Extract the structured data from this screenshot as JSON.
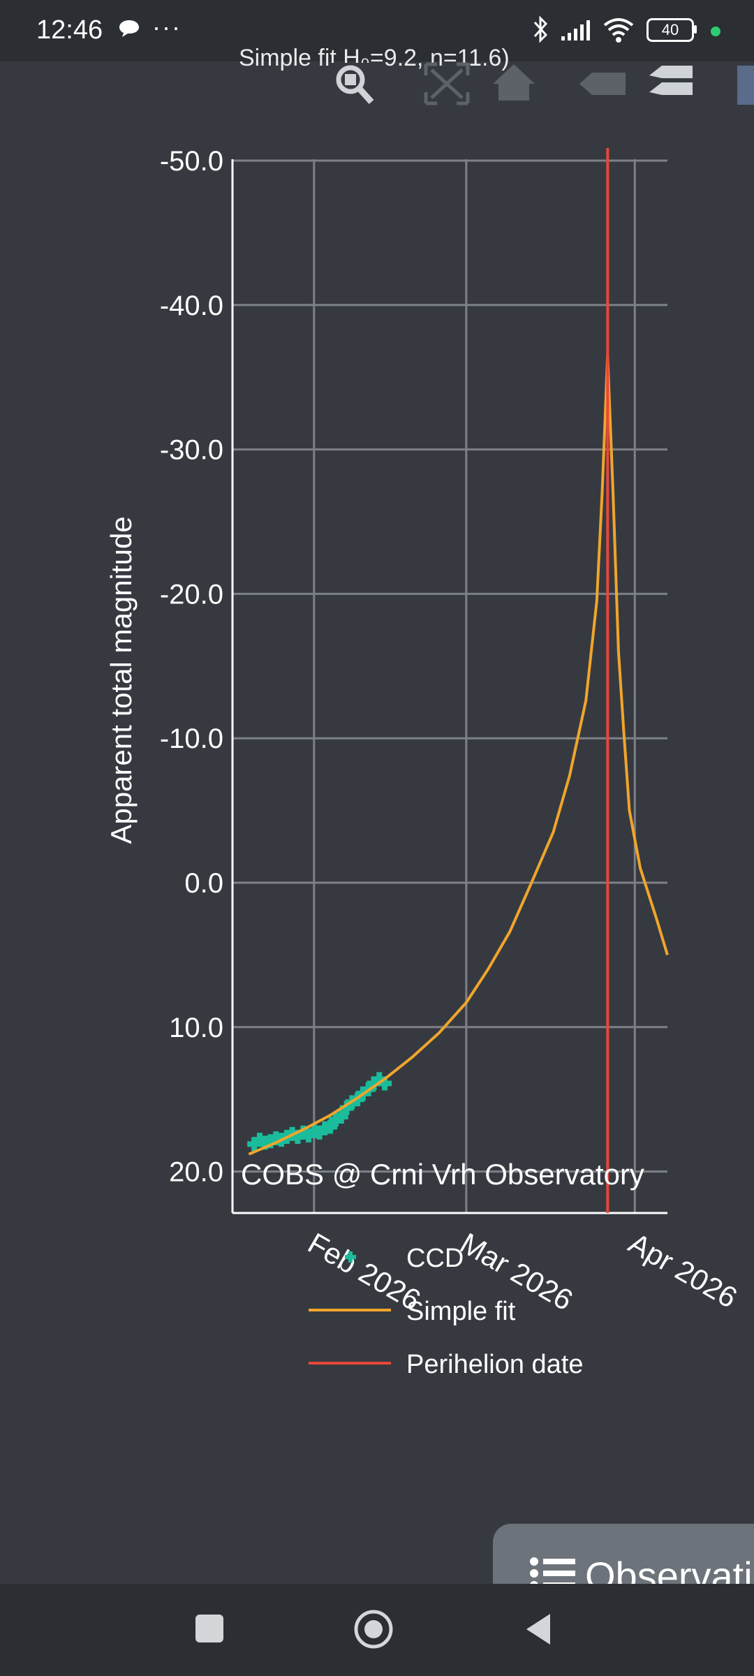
{
  "status_bar": {
    "time": "12:46",
    "chat_icon": "speech-bubble-icon",
    "overflow": "···",
    "battery": "40",
    "icons": [
      "bluetooth-icon",
      "signal-icon",
      "wifi-icon",
      "battery-icon"
    ],
    "dot_color": "#2ecc71"
  },
  "modebar": {
    "title_fragment": "Simple fit H₀=9.2, n=11.6)",
    "buttons": [
      "zoom-icon",
      "autoscale-icon",
      "home-icon",
      "compare-icon",
      "closest-icon"
    ]
  },
  "chart_data": {
    "type": "line",
    "title": "",
    "xlabel": "",
    "ylabel": "Apparent total magnitude",
    "annotation": "COBS @ Crni Vrh Observatory",
    "y_reversed": true,
    "ylim": [
      20.0,
      -50.0
    ],
    "yticks": [
      "-50.0",
      "-40.0",
      "-30.0",
      "-20.0",
      "-10.0",
      "0.0",
      "10.0",
      "20.0"
    ],
    "ytick_values": [
      -50,
      -40,
      -30,
      -20,
      -10,
      0,
      10,
      20
    ],
    "xlim": [
      "2026-01-17",
      "2026-04-07"
    ],
    "xticks": [
      "Feb 2026",
      "Mar 2026",
      "Apr 2026"
    ],
    "xtick_dates": [
      "2026-02-01",
      "2026-03-01",
      "2026-04-01"
    ],
    "grid": true,
    "legend_placement": "bottom",
    "series": [
      {
        "name": "CCD",
        "kind": "markers",
        "color": "#1abc9c",
        "points": [
          [
            "2026-01-21",
            18.1
          ],
          [
            "2026-01-22",
            17.8
          ],
          [
            "2026-01-23",
            18.0
          ],
          [
            "2026-01-24",
            17.9
          ],
          [
            "2026-01-25",
            17.7
          ],
          [
            "2026-01-26",
            17.8
          ],
          [
            "2026-01-27",
            17.6
          ],
          [
            "2026-01-28",
            17.4
          ],
          [
            "2026-01-29",
            17.6
          ],
          [
            "2026-01-30",
            17.3
          ],
          [
            "2026-01-31",
            17.5
          ],
          [
            "2026-02-01",
            17.2
          ],
          [
            "2026-02-02",
            17.3
          ],
          [
            "2026-02-03",
            17.0
          ],
          [
            "2026-02-04",
            16.9
          ],
          [
            "2026-02-05",
            16.4
          ],
          [
            "2026-02-06",
            16.2
          ],
          [
            "2026-02-07",
            15.6
          ],
          [
            "2026-02-08",
            15.2
          ],
          [
            "2026-02-09",
            15.0
          ],
          [
            "2026-02-10",
            14.6
          ],
          [
            "2026-02-11",
            14.3
          ],
          [
            "2026-02-12",
            13.9
          ],
          [
            "2026-02-13",
            13.6
          ],
          [
            "2026-02-14",
            13.9
          ]
        ]
      },
      {
        "name": "Simple fit",
        "kind": "line",
        "color": "#f0a52c",
        "points": [
          [
            "2026-01-20",
            18.8
          ],
          [
            "2026-01-25",
            18.0
          ],
          [
            "2026-01-30",
            17.1
          ],
          [
            "2026-02-04",
            16.1
          ],
          [
            "2026-02-09",
            14.9
          ],
          [
            "2026-02-14",
            13.6
          ],
          [
            "2026-02-19",
            12.1
          ],
          [
            "2026-02-24",
            10.4
          ],
          [
            "2026-03-01",
            8.3
          ],
          [
            "2026-03-05",
            6.0
          ],
          [
            "2026-03-09",
            3.4
          ],
          [
            "2026-03-13",
            0.0
          ],
          [
            "2026-03-17",
            -3.5
          ],
          [
            "2026-03-20",
            -7.4
          ],
          [
            "2026-03-23",
            -12.6
          ],
          [
            "2026-03-25",
            -19.5
          ],
          [
            "2026-03-26",
            -27.0
          ],
          [
            "2026-03-27",
            -36.5
          ],
          [
            "2026-03-28",
            -27.0
          ],
          [
            "2026-03-29",
            -16.0
          ],
          [
            "2026-03-30",
            -10.3
          ],
          [
            "2026-03-31",
            -5.0
          ],
          [
            "2026-04-02",
            -1.0
          ],
          [
            "2026-04-05",
            2.5
          ],
          [
            "2026-04-07",
            5.0
          ]
        ]
      },
      {
        "name": "Perihelion date",
        "kind": "vline",
        "color": "#e8473b",
        "x": "2026-03-27"
      }
    ]
  },
  "fab": {
    "label": "Observations",
    "icon": "list-icon"
  },
  "nav_bar": {
    "buttons": [
      "recents-icon",
      "home-icon",
      "back-icon"
    ]
  }
}
